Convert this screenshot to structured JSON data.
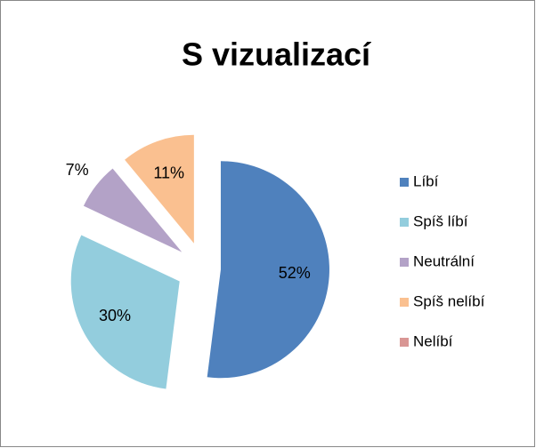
{
  "chart_data": {
    "type": "pie",
    "title": "S vizualizací",
    "categories": [
      "Líbí",
      "Spíš líbí",
      "Neutrální",
      "Spíš nelíbí",
      "Nelíbí"
    ],
    "values": [
      52,
      30,
      7,
      11,
      0
    ],
    "value_labels": [
      "52%",
      "30%",
      "7%",
      "11%",
      null
    ],
    "colors": [
      "#4f81bd",
      "#93cddd",
      "#b3a2c7",
      "#fac090",
      "#d99694"
    ],
    "legend": "right"
  }
}
